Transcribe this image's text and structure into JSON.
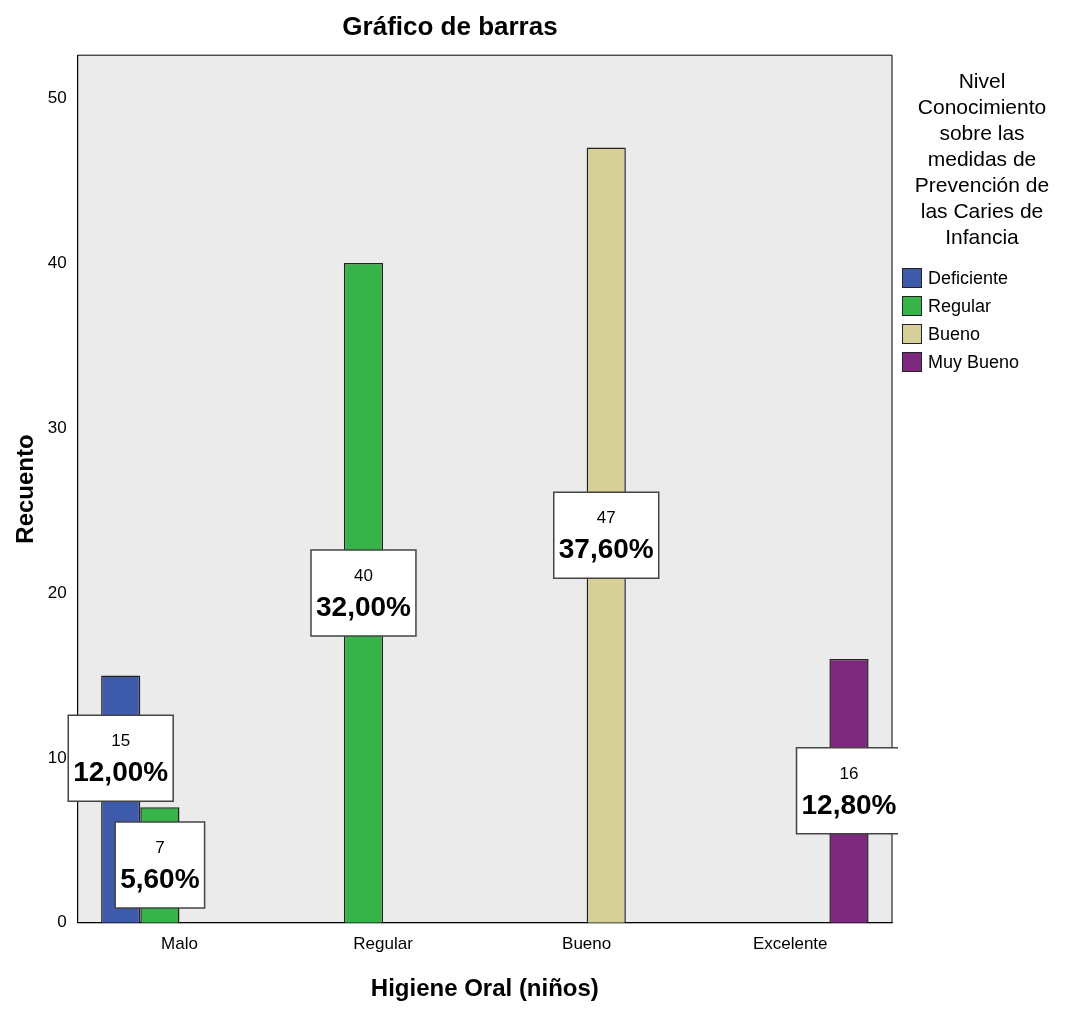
{
  "chart_data": {
    "type": "bar",
    "title": "Gráfico de barras",
    "xlabel": "Higiene Oral (niños)",
    "ylabel": "Recuento",
    "legend_title": "Nivel Conocimiento sobre las medidas de Prevención de las Caries de Infancia",
    "categories": [
      "Malo",
      "Regular",
      "Bueno",
      "Excelente"
    ],
    "series": [
      {
        "name": "Deficiente",
        "color": "#3e5bab",
        "values": [
          15,
          null,
          null,
          null
        ],
        "value_labels": [
          "15\n12,00%",
          null,
          null,
          null
        ]
      },
      {
        "name": "Regular",
        "color": "#36b44a",
        "values": [
          7,
          40,
          null,
          null
        ],
        "value_labels": [
          "7\n5,60%",
          "40\n32,00%",
          null,
          null
        ]
      },
      {
        "name": "Bueno",
        "color": "#d6cf96",
        "values": [
          null,
          null,
          47,
          null
        ],
        "value_labels": [
          null,
          null,
          "47\n37,60%",
          null
        ]
      },
      {
        "name": "Muy Bueno",
        "color": "#7d2a7e",
        "values": [
          null,
          null,
          null,
          16
        ],
        "value_labels": [
          null,
          null,
          null,
          "16\n12,80%"
        ]
      }
    ],
    "ylim": [
      0,
      52.6
    ],
    "yticks": [
      0,
      10,
      20,
      30,
      40,
      50
    ],
    "grid": false,
    "legend": "right"
  }
}
